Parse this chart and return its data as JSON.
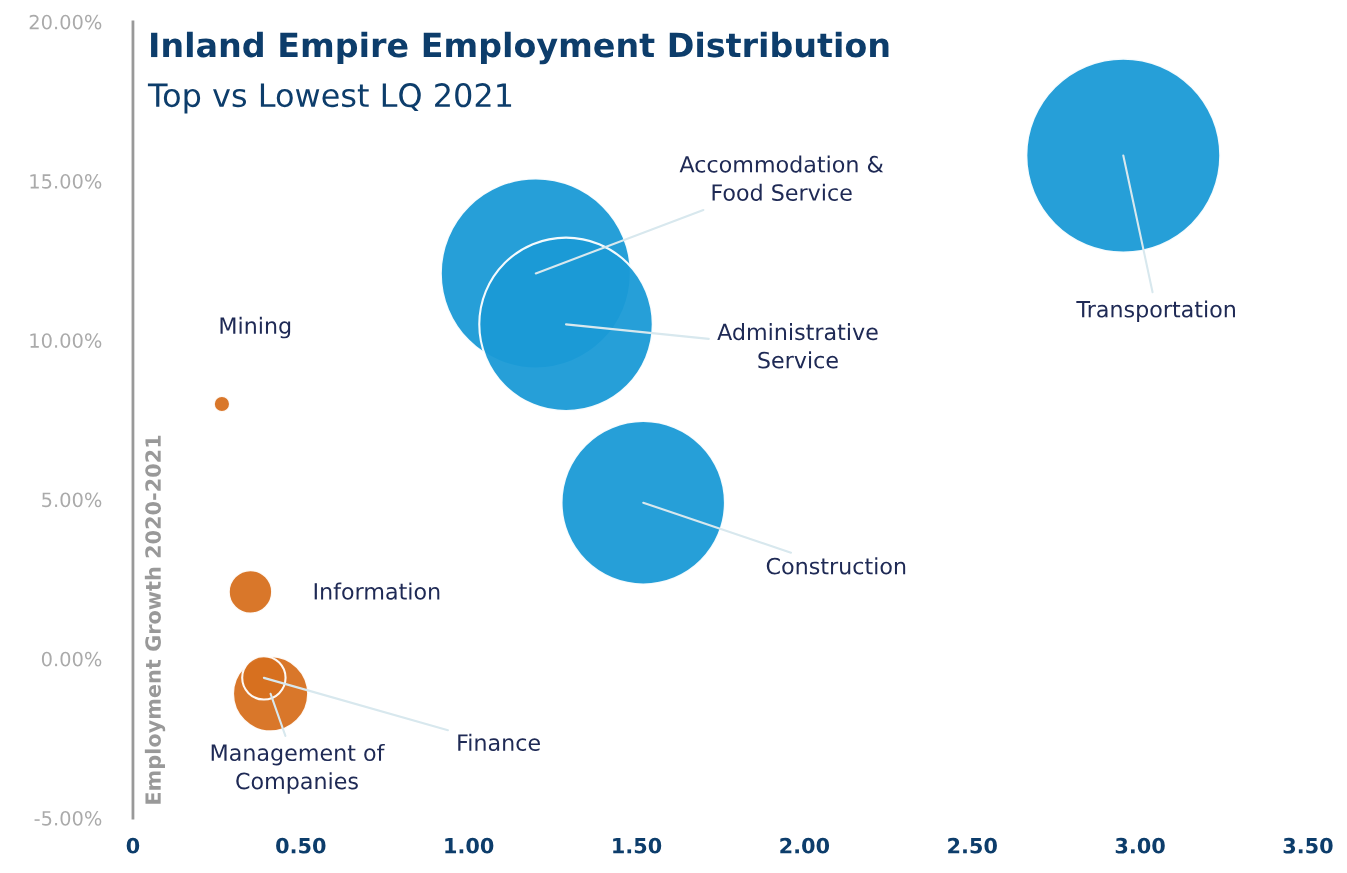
{
  "chart_data": {
    "type": "bubble",
    "title": "Inland Empire Employment Distribution",
    "subtitle": "Top vs Lowest LQ 2021",
    "ylabel": "Employment Growth 2020-2021",
    "x": [
      2.95,
      1.2,
      1.29,
      1.52,
      0.265,
      0.35,
      0.41,
      0.39
    ],
    "values": [
      15.8,
      12.1,
      10.5,
      4.9,
      8.0,
      2.1,
      -1.1,
      -0.6
    ],
    "sizes": [
      1,
      0.96,
      0.8,
      0.71,
      0.007,
      0.05,
      0.15,
      0.05
    ],
    "colors": [
      "#1a9ad6",
      "#1a9ad6",
      "#1a9ad6",
      "#1a9ad6",
      "#d7701f",
      "#d7701f",
      "#d7701f",
      "#d7701f"
    ],
    "annotations": [
      {
        "text": "Transportation",
        "x": 2.95,
        "y": 15.8
      },
      {
        "text": "Accommodation &\nFood Service",
        "x": 1.2,
        "y": 12.1
      },
      {
        "text": "Administrative\nService",
        "x": 1.29,
        "y": 10.5
      },
      {
        "text": "Construction",
        "x": 1.52,
        "y": 4.9
      },
      {
        "text": "Mining",
        "x": 0.265,
        "y": 8.0
      },
      {
        "text": "Information",
        "x": 0.35,
        "y": 2.1
      },
      {
        "text": "Management of\nCompanies",
        "x": 0.41,
        "y": -1.1
      },
      {
        "text": "Finance",
        "x": 0.39,
        "y": -0.6
      }
    ],
    "xlim": [
      0,
      3.5
    ],
    "xticks": [
      0,
      {
        "value": 0.5,
        "label": "0.50"
      },
      {
        "value": 1.0,
        "label": "1.00"
      },
      {
        "value": 1.5,
        "label": "1.50"
      },
      {
        "value": 2.0,
        "label": "2.00"
      },
      {
        "value": 2.5,
        "label": "2.50"
      },
      {
        "value": 3.0,
        "label": "3.00"
      },
      {
        "value": 3.5,
        "label": "3.50"
      }
    ],
    "ylim": [
      -5,
      20
    ],
    "yticks": [
      {
        "value": -5,
        "label": "-5.00%"
      },
      {
        "value": 0,
        "label": "0.00%"
      },
      {
        "value": 5,
        "label": "5.00%"
      },
      {
        "value": 10,
        "label": "10.00%"
      },
      {
        "value": 15,
        "label": "15.00%"
      },
      {
        "value": 20,
        "label": "20.00%"
      }
    ]
  }
}
